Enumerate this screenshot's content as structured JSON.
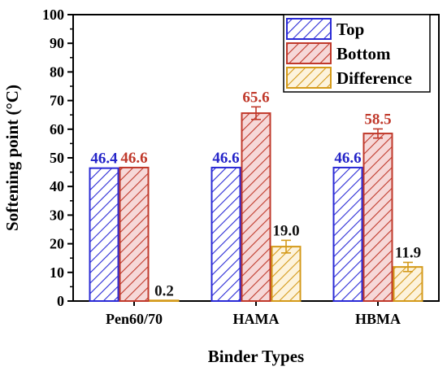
{
  "chart_data": {
    "type": "bar",
    "title": "",
    "xlabel": "Binder Types",
    "ylabel": "Softening point (°C)",
    "ylim": [
      0,
      100
    ],
    "yticks": [
      0,
      10,
      20,
      30,
      40,
      50,
      60,
      70,
      80,
      90,
      100
    ],
    "categories": [
      "Pen60/70",
      "HAMA",
      "HBMA"
    ],
    "series": [
      {
        "name": "Top",
        "values": [
          46.4,
          46.6,
          46.6
        ],
        "labels": [
          "46.4",
          "46.6",
          "46.6"
        ],
        "errors": [
          0,
          0,
          0
        ],
        "color": "#2b2bd6",
        "fill": "#ffffff",
        "label_color": "#2424c8"
      },
      {
        "name": "Bottom",
        "values": [
          46.6,
          65.6,
          58.5
        ],
        "labels": [
          "46.6",
          "65.6",
          "58.5"
        ],
        "errors": [
          0,
          2.2,
          1.6
        ],
        "color": "#c0392b",
        "fill": "#f6d8d8",
        "label_color": "#c0392b"
      },
      {
        "name": "Difference",
        "values": [
          0.2,
          19.0,
          11.9
        ],
        "labels": [
          "0.2",
          "19.0",
          "11.9"
        ],
        "errors": [
          0,
          2.2,
          1.6
        ],
        "color": "#d49a1a",
        "fill": "#fdf3dc",
        "label_color": "#111111"
      }
    ],
    "legend": {
      "position": "top-right"
    },
    "grid": false,
    "pattern": "diagonal-hatch"
  }
}
